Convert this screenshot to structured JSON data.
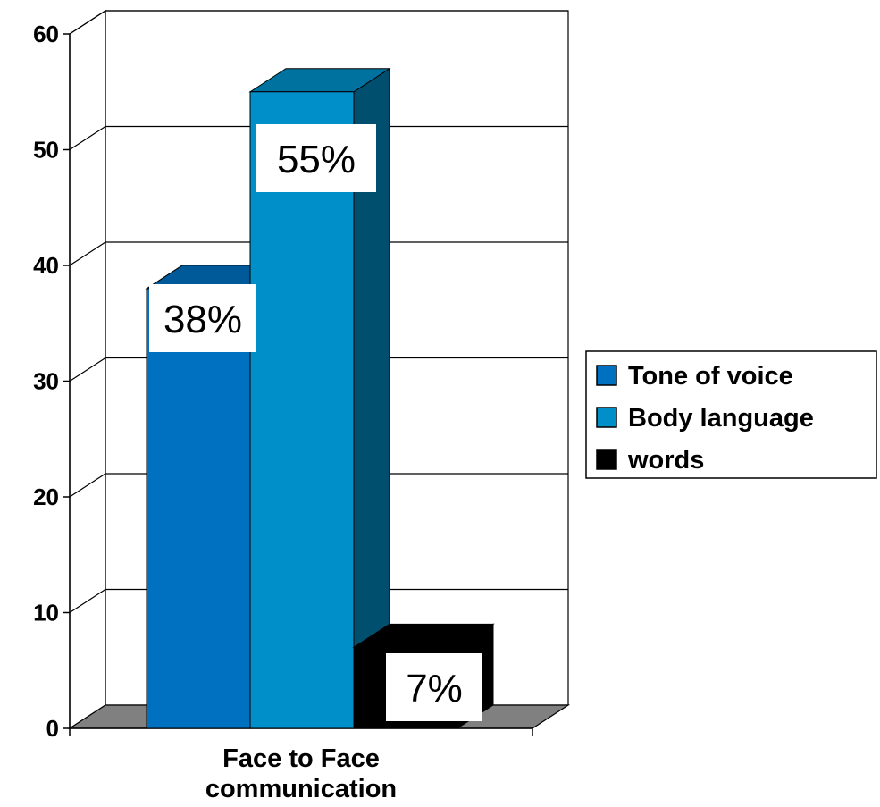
{
  "chart_data": {
    "type": "bar",
    "categories": [
      "Face to Face communication"
    ],
    "category_label_lines": [
      "Face to Face",
      "communication"
    ],
    "series": [
      {
        "name": "Tone of voice",
        "values": [
          38
        ],
        "label": "38%",
        "color": "#0070C0"
      },
      {
        "name": "Body language",
        "values": [
          55
        ],
        "label": "55%",
        "color": "#008FC8"
      },
      {
        "name": "words",
        "values": [
          7
        ],
        "label": "7%",
        "color": "#000000"
      }
    ],
    "ylim": [
      0,
      60
    ],
    "yticks": [
      "0",
      "10",
      "20",
      "30",
      "40",
      "50",
      "60"
    ],
    "grid": true,
    "legend": "right",
    "three_d": true,
    "title": "",
    "xlabel": "",
    "ylabel": ""
  }
}
